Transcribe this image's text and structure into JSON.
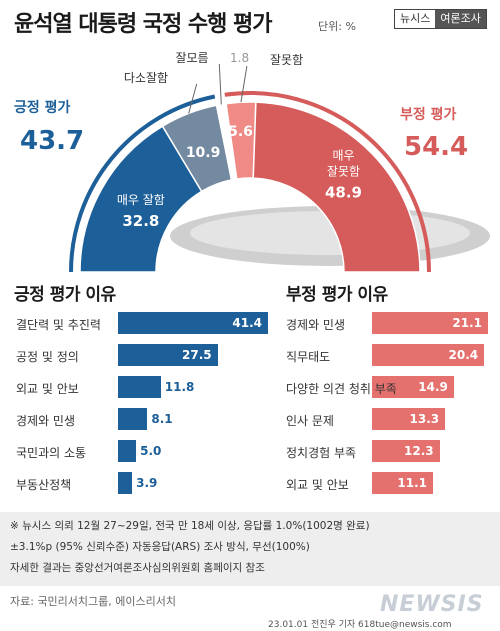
{
  "header": {
    "title": "윤석열 대통령 국정 수행 평가",
    "unit": "단위: %",
    "badge_left": "뉴시스",
    "badge_right": "여론조사"
  },
  "gauge": {
    "positive_label": "긍정 평가",
    "positive_total": "43.7",
    "negative_label": "부정 평가",
    "negative_total": "54.4",
    "segments": [
      {
        "key": "very_good",
        "label": "매우 잘함",
        "value": 32.8,
        "display": "32.8",
        "color": "#1d5f98"
      },
      {
        "key": "good",
        "label": "다소잘함",
        "value": 10.9,
        "display": "10.9",
        "color": "#738aa0"
      },
      {
        "key": "unknown",
        "label": "잘모름",
        "value": 1.8,
        "display": "1.8",
        "color": "#ffffff"
      },
      {
        "key": "bad",
        "label": "잘못함",
        "value": 5.6,
        "display": "5.6",
        "color": "#f08a87"
      },
      {
        "key": "very_bad",
        "label": "매우 잘못함",
        "value": 48.9,
        "display": "48.9",
        "color": "#d55c5a"
      }
    ],
    "label_very_bad_line1": "매우",
    "label_very_bad_line2": "잘못함"
  },
  "chart_data": [
    {
      "type": "bar",
      "title": "긍정 평가 이유",
      "categories": [
        "결단력 및 추진력",
        "공정 및 정의",
        "외교 및 안보",
        "경제와 민생",
        "국민과의 소통",
        "부동산정책"
      ],
      "values": [
        41.4,
        27.5,
        11.8,
        8.1,
        5.0,
        3.9
      ],
      "labels": [
        "41.4",
        "27.5",
        "11.8",
        "8.1",
        "5.0",
        "3.9"
      ],
      "color": "#1d5f98"
    },
    {
      "type": "bar",
      "title": "부정 평가 이유",
      "categories": [
        "경제와 민생",
        "직무태도",
        "다양한 의견 청취 부족",
        "인사 문제",
        "정치경험 부족",
        "외교 및 안보"
      ],
      "values": [
        21.1,
        20.4,
        14.9,
        13.3,
        12.3,
        11.1
      ],
      "labels": [
        "21.1",
        "20.4",
        "14.9",
        "13.3",
        "12.3",
        "11.1"
      ],
      "color": "#e4716e"
    }
  ],
  "footnote": {
    "line1": "※ 뉴시스 의뢰 12월 27~29일, 전국 만 18세 이상, 응답률 1.0%(1002명 완료)",
    "line2": "±3.1%p (95% 신뢰수준) 자동응답(ARS) 조사 방식, 무선(100%)",
    "line3": "자세한 결과는 중앙선거여론조사심의위원회 홈페이지 참조"
  },
  "source": "자료: 국민리서치그룹, 에이스리서치",
  "credit": "23.01.01 전진우 기자 618tue@newsis.com",
  "logo": "NEWSIS"
}
